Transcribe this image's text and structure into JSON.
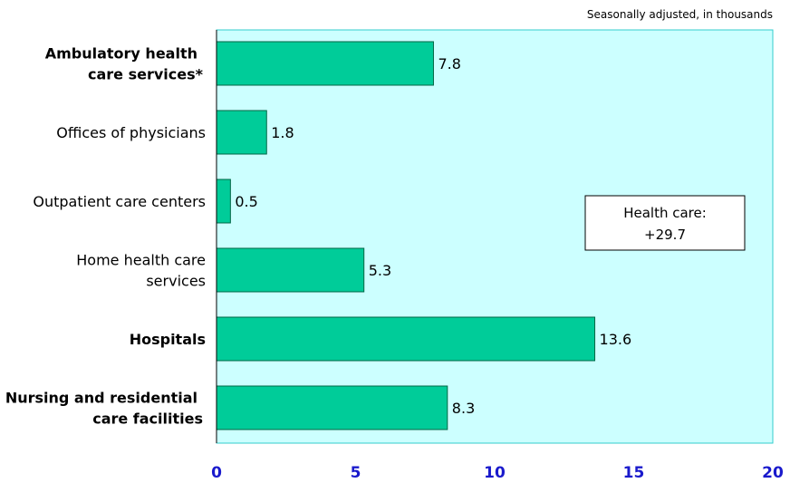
{
  "chart_data": {
    "type": "bar",
    "orientation": "horizontal",
    "note": "Seasonally adjusted, in thousands",
    "categories": [
      {
        "label": [
          "Ambulatory health",
          "care services*"
        ],
        "bold": true
      },
      {
        "label": [
          "Offices of physicians"
        ],
        "bold": false
      },
      {
        "label": [
          "Outpatient care centers"
        ],
        "bold": false
      },
      {
        "label": [
          "Home health care",
          "services"
        ],
        "bold": false
      },
      {
        "label": [
          "Hospitals"
        ],
        "bold": true
      },
      {
        "label": [
          "Nursing and residential",
          "care facilities"
        ],
        "bold": true
      }
    ],
    "values": [
      7.8,
      1.8,
      0.5,
      5.3,
      13.6,
      8.3
    ],
    "value_labels": [
      "7.8",
      "1.8",
      "0.5",
      "5.3",
      "13.6",
      "8.3"
    ],
    "xlim": [
      0,
      20
    ],
    "xticks": [
      0,
      5,
      10,
      15,
      20
    ],
    "xtick_labels": [
      "0",
      "5",
      "10",
      "15",
      "20"
    ],
    "grid": false,
    "callout": {
      "line1": "Health care:",
      "line2": "+29.7"
    },
    "colors": {
      "bar": "#00cc99",
      "bar_stroke": "#006644",
      "plot_bg": "#ccffff",
      "plot_border": "#33cccc",
      "tick_label": "#1a1acc"
    }
  }
}
